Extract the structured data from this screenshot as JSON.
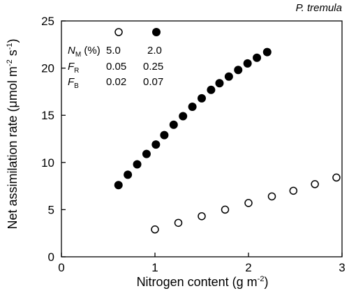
{
  "chart_data": {
    "type": "scatter",
    "title": "",
    "species_label": "P. tremula",
    "xlabel": {
      "main": "Nitrogen content (g m",
      "sup": "-2",
      "tail": ")"
    },
    "ylabel": {
      "main": "Net assimilation rate (μmol m",
      "sup1": "-2",
      "mid": " s",
      "sup2": "-1",
      "tail": ")"
    },
    "xlim": [
      0,
      3
    ],
    "ylim": [
      0,
      25
    ],
    "xticks": [
      0,
      1,
      2,
      3
    ],
    "yticks": [
      0,
      5,
      10,
      15,
      20,
      25
    ],
    "xtick_labels": [
      "0",
      "1",
      "2",
      "3"
    ],
    "ytick_labels": [
      "0",
      "5",
      "10",
      "15",
      "20",
      "25"
    ],
    "grid": false,
    "legend_placement": "top-left (inset table)",
    "legend": {
      "rows": [
        {
          "symbol": "N",
          "sub": "M",
          "suffix": " (%)",
          "values": [
            "5.0",
            "2.0"
          ]
        },
        {
          "symbol": "F",
          "sub": "R",
          "suffix": "",
          "values": [
            "0.05",
            "0.25"
          ]
        },
        {
          "symbol": "F",
          "sub": "B",
          "suffix": "",
          "values": [
            "0.02",
            "0.07"
          ]
        }
      ]
    },
    "series": [
      {
        "marker": "open-circle",
        "x": [
          1.0,
          1.25,
          1.5,
          1.75,
          2.0,
          2.25,
          2.48,
          2.71,
          2.94
        ],
        "y": [
          2.9,
          3.6,
          4.3,
          5.0,
          5.7,
          6.4,
          7.0,
          7.7,
          8.4
        ]
      },
      {
        "marker": "filled-circle",
        "x": [
          0.61,
          0.71,
          0.81,
          0.91,
          1.01,
          1.1,
          1.2,
          1.3,
          1.4,
          1.5,
          1.6,
          1.69,
          1.79,
          1.89,
          1.99,
          2.09,
          2.2
        ],
        "y": [
          7.6,
          8.7,
          9.8,
          10.9,
          11.9,
          12.9,
          14.0,
          14.9,
          15.9,
          16.8,
          17.7,
          18.4,
          19.1,
          19.8,
          20.5,
          21.1,
          21.7
        ]
      }
    ],
    "colors": {
      "axis": "#000000",
      "marker": "#000000",
      "background": "#ffffff"
    }
  }
}
